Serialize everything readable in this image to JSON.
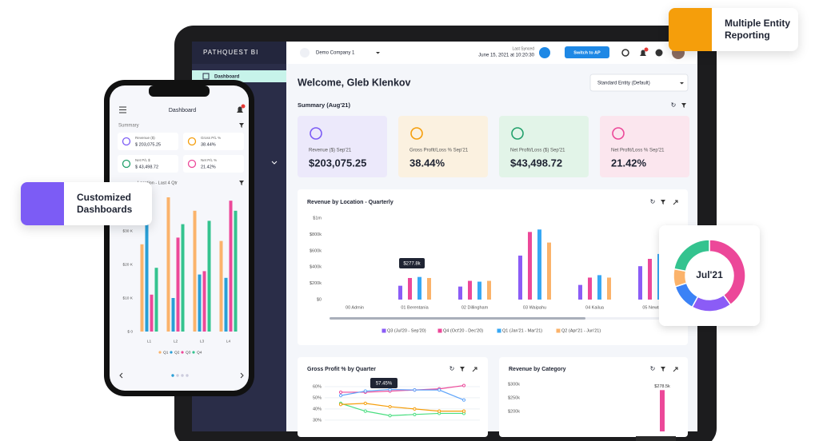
{
  "badges": {
    "entity": "Multiple Entity Reporting",
    "dashboards": "Customized Dashboards"
  },
  "donut": {
    "type": "pie",
    "label": "Jul'21",
    "values": [
      40,
      18,
      12,
      8,
      22
    ],
    "colors": [
      "#ec4899",
      "#8b5cf6",
      "#3b82f6",
      "#fbb36b",
      "#34c38f"
    ]
  },
  "tablet": {
    "logo": "PATHQUEST BI",
    "nav": [
      "Dashboard"
    ],
    "company": "Demo Company 1",
    "sync_label": "Last Synced",
    "sync_time": "June 15, 2021 at 10:20:30",
    "switch_button": "Switch to AP",
    "welcome": "Welcome, Gleb Klenkov",
    "entity_select": "Standard Entity (Default)",
    "summary_title": "Summary (Aug'21)",
    "kpis": [
      {
        "label": "Revenue ($) Sep'21",
        "value": "$203,075.25"
      },
      {
        "label": "Gross Profit/Loss % Sep'21",
        "value": "38.44%"
      },
      {
        "label": "Net Profit/Loss ($) Sep'21",
        "value": "$43,498.72"
      },
      {
        "label": "Net Profit/Loss % Sep'21",
        "value": "21.42%"
      }
    ],
    "revenue_chart": {
      "type": "bar",
      "title": "Revenue by Location - Quarterly",
      "categories": [
        "00 Admin",
        "01 Berentania",
        "02 Dillingham",
        "03 Waipahu",
        "04 Kailua",
        "05 Newtown"
      ],
      "series": [
        {
          "name": "Q3 (Jul'20 - Sep'20)",
          "color": "#8b5cf6",
          "values": [
            0,
            170000,
            160000,
            540000,
            180000,
            410000
          ]
        },
        {
          "name": "Q4 (Oct'20 - Dec'20)",
          "color": "#ec4899",
          "values": [
            0,
            265000,
            230000,
            830000,
            270000,
            500000
          ]
        },
        {
          "name": "Q1 (Jan'21 - Mar'21)",
          "color": "#38a8f5",
          "values": [
            0,
            277800,
            220000,
            860000,
            300000,
            560000
          ]
        },
        {
          "name": "Q2 (Apr'21 - Jun'21)",
          "color": "#fbb36b",
          "values": [
            0,
            265000,
            230000,
            700000,
            270000,
            480000
          ]
        }
      ],
      "ylim": [
        0,
        1000000
      ],
      "yticks": [
        {
          "value": 1000000,
          "label": "$1m"
        },
        {
          "value": 800000,
          "label": "$800k"
        },
        {
          "value": 600000,
          "label": "$600k"
        },
        {
          "value": 400000,
          "label": "$400k"
        },
        {
          "value": 200000,
          "label": "$200k"
        },
        {
          "value": 0,
          "label": "$0"
        }
      ],
      "tooltip": "$277.8k"
    },
    "gross_chart": {
      "type": "line",
      "title": "Gross Profit % by Quarter",
      "series": [
        {
          "color": "#ec4899",
          "values": [
            55,
            55,
            56,
            57,
            58,
            61
          ]
        },
        {
          "color": "#60a5fa",
          "values": [
            52,
            56,
            57.45,
            57,
            57,
            48
          ]
        },
        {
          "color": "#4ade80",
          "values": [
            45,
            38,
            34,
            35,
            36,
            36
          ]
        },
        {
          "color": "#f59e0b",
          "values": [
            44,
            45,
            42,
            40,
            38,
            38
          ]
        }
      ],
      "ylim": [
        27,
        70
      ],
      "yticks": [
        {
          "value": 60,
          "label": "60%"
        },
        {
          "value": 50,
          "label": "50%"
        },
        {
          "value": 40,
          "label": "40%"
        },
        {
          "value": 30,
          "label": "30%"
        }
      ],
      "tooltip": "57.45%"
    },
    "category_chart": {
      "type": "bar",
      "title": "Revenue by Category",
      "values": [
        278500
      ],
      "value_labels": [
        "$278.5k"
      ],
      "color": "#ec4899",
      "ylim": [
        170000,
        320000
      ],
      "yticks": [
        {
          "value": 300000,
          "label": "$300k"
        },
        {
          "value": 250000,
          "label": "$250k"
        },
        {
          "value": 200000,
          "label": "$200k"
        }
      ]
    }
  },
  "phone": {
    "title": "Dashboard",
    "summary": "Summary",
    "kpis": [
      {
        "label": "Revenue ($)",
        "value": "$ 203,075.25"
      },
      {
        "label": "Gross P/L %",
        "value": "38.44%"
      },
      {
        "label": "Net P/L $",
        "value": "$ 43,498.72"
      },
      {
        "label": "Net P/L %",
        "value": "21.42%"
      }
    ],
    "chart": {
      "type": "bar",
      "title": "Location - Last 4 Qtr",
      "categories": [
        "L1",
        "L2",
        "L3",
        "L4"
      ],
      "series": [
        {
          "name": "Q1",
          "color": "#fbb36b",
          "values": [
            26000,
            40000,
            36000,
            27000
          ]
        },
        {
          "name": "Q2",
          "color": "#2a9fd6",
          "values": [
            33000,
            10000,
            17000,
            16000
          ]
        },
        {
          "name": "Q3",
          "color": "#ec4899",
          "values": [
            11000,
            28000,
            18000,
            39000
          ]
        },
        {
          "name": "Q4",
          "color": "#34c38f",
          "values": [
            19000,
            32000,
            33000,
            36000
          ]
        }
      ],
      "ylim": [
        0,
        40000
      ],
      "yticks": [
        {
          "value": 30000,
          "label": "$30 K"
        },
        {
          "value": 20000,
          "label": "$20 K"
        },
        {
          "value": 10000,
          "label": "$10 K"
        },
        {
          "value": 0,
          "label": "$ 0"
        }
      ]
    }
  }
}
